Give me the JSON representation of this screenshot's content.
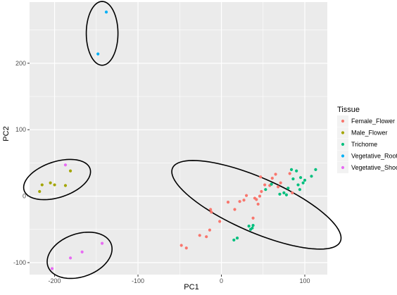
{
  "chart_data": {
    "type": "scatter",
    "xlabel": "PC1",
    "ylabel": "PC2",
    "xlim": [
      -230,
      127
    ],
    "ylim": [
      -118,
      292
    ],
    "x_ticks": [
      -200,
      -100,
      0,
      100
    ],
    "y_ticks": [
      -100,
      0,
      100,
      200
    ],
    "x_minor_ticks": [
      -150,
      -50,
      50
    ],
    "y_minor_ticks": [
      -50,
      50,
      150,
      250
    ],
    "grid": true,
    "legend_title": "Tissue",
    "legend_position": "right",
    "series": [
      {
        "name": "Female_Flower",
        "color": "#F8766D",
        "points": [
          [
            -48,
            -74
          ],
          [
            -42,
            -78
          ],
          [
            -26,
            -59
          ],
          [
            -18,
            -61
          ],
          [
            -14,
            -51
          ],
          [
            -13,
            -20
          ],
          [
            -12,
            -24
          ],
          [
            -2,
            -38
          ],
          [
            8,
            -9
          ],
          [
            16,
            -20
          ],
          [
            22,
            -8
          ],
          [
            27,
            -6
          ],
          [
            30,
            1
          ],
          [
            38,
            -33
          ],
          [
            40,
            -3
          ],
          [
            42,
            -5
          ],
          [
            44,
            -12
          ],
          [
            46,
            0
          ],
          [
            47,
            29
          ],
          [
            48,
            7
          ],
          [
            52,
            17
          ],
          [
            58,
            16
          ],
          [
            61,
            27
          ],
          [
            65,
            33
          ],
          [
            68,
            14
          ],
          [
            71,
            20
          ],
          [
            82,
            34
          ],
          [
            85,
            5
          ]
        ]
      },
      {
        "name": "Male_Flower",
        "color": "#A3A500",
        "points": [
          [
            -218,
            7
          ],
          [
            -215,
            17
          ],
          [
            -205,
            20
          ],
          [
            -200,
            17
          ],
          [
            -187,
            16
          ],
          [
            -181,
            38
          ]
        ]
      },
      {
        "name": "Trichome",
        "color": "#00BF7D",
        "points": [
          [
            15,
            -66
          ],
          [
            19,
            -63
          ],
          [
            33,
            -45
          ],
          [
            35,
            -50
          ],
          [
            37,
            -48
          ],
          [
            38,
            -44
          ],
          [
            53,
            10
          ],
          [
            60,
            18
          ],
          [
            70,
            3
          ],
          [
            75,
            5
          ],
          [
            78,
            2
          ],
          [
            80,
            12
          ],
          [
            84,
            40
          ],
          [
            86,
            26
          ],
          [
            90,
            38
          ],
          [
            92,
            17
          ],
          [
            94,
            10
          ],
          [
            95,
            28
          ],
          [
            98,
            20
          ],
          [
            100,
            24
          ],
          [
            108,
            30
          ],
          [
            113,
            40
          ]
        ]
      },
      {
        "name": "Vegetative_Root",
        "color": "#00B0F6",
        "points": [
          [
            -138,
            277
          ],
          [
            -148,
            214
          ]
        ]
      },
      {
        "name": "Vegetative_Shoot",
        "color": "#E76BF3",
        "points": [
          [
            -187,
            47
          ],
          [
            -143,
            -71
          ],
          [
            -167,
            -84
          ],
          [
            -181,
            -93
          ],
          [
            -203,
            -109
          ]
        ]
      }
    ],
    "ellipses": [
      {
        "cx": -143,
        "cy": 245,
        "rx": 19,
        "ry": 48,
        "angle": 0
      },
      {
        "cx": -197,
        "cy": 25,
        "rx": 26,
        "ry": 43,
        "angle": -63
      },
      {
        "cx": -170,
        "cy": -89,
        "rx": 31,
        "ry": 42,
        "angle": -56
      },
      {
        "cx": 42,
        "cy": -13,
        "rx": 115,
        "ry": 39,
        "angle": -30
      }
    ]
  }
}
